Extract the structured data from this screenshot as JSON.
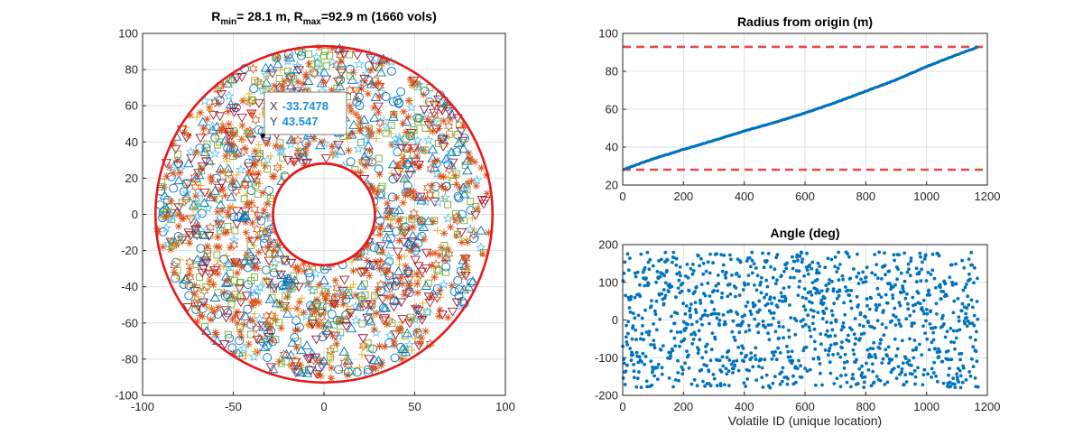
{
  "colors": {
    "red": "#e41a1c",
    "dashed_red": "#e8474c",
    "blue": "#0072bd",
    "orange": "#d95319",
    "yellow": "#edb120",
    "purple": "#7e2f8e",
    "green": "#77ac30",
    "cyan": "#4dbeee",
    "maroon": "#a2142f",
    "grid": "#e1e1e1",
    "axis": "#262626",
    "tip_value": "#1e90d8"
  },
  "chart_data": [
    {
      "id": "scatter",
      "type": "scatter",
      "title_main": "R",
      "title_sub_min": "min",
      "title_mid": "= 28.1 m, R",
      "title_sub_max": "max",
      "title_tail": "=92.9 m (1660 vols)",
      "xlim": [
        -100,
        100
      ],
      "ylim": [
        -100,
        100
      ],
      "xticks": [
        -100,
        -50,
        0,
        50,
        100
      ],
      "yticks": [
        -100,
        -80,
        -60,
        -40,
        -20,
        0,
        20,
        40,
        60,
        80,
        100
      ],
      "grid": true,
      "r_min": 28.1,
      "r_max": 92.9,
      "n_points": 1660,
      "marker_types": [
        "circle",
        "triangle-up",
        "triangle-down",
        "square",
        "plus",
        "asterisk",
        "star",
        "hexagram"
      ],
      "datatip": {
        "x_label": "X",
        "x_value": "-33.7478",
        "y_label": "Y",
        "y_value": "43.547",
        "x": -33.7478,
        "y": 43.547
      }
    },
    {
      "id": "radius",
      "type": "line",
      "title": "Radius from origin (m)",
      "xlim": [
        0,
        1200
      ],
      "ylim": [
        20,
        100
      ],
      "xticks": [
        0,
        200,
        400,
        600,
        800,
        1000,
        1200
      ],
      "yticks": [
        20,
        40,
        60,
        80,
        100
      ],
      "grid": true,
      "x_end": 1170,
      "curve": [
        [
          0,
          28.1
        ],
        [
          100,
          33.8
        ],
        [
          200,
          38.8
        ],
        [
          300,
          43.5
        ],
        [
          400,
          48.5
        ],
        [
          500,
          53.0
        ],
        [
          600,
          58.0
        ],
        [
          700,
          63.5
        ],
        [
          800,
          69.5
        ],
        [
          900,
          75.5
        ],
        [
          1000,
          82.5
        ],
        [
          1100,
          88.7
        ],
        [
          1170,
          92.9
        ]
      ],
      "hlines": [
        28.1,
        92.9
      ]
    },
    {
      "id": "angle",
      "type": "scatter",
      "title": "Angle (deg)",
      "xlabel": "Volatile ID (unique location)",
      "xlim": [
        0,
        1200
      ],
      "ylim": [
        -200,
        200
      ],
      "xticks": [
        0,
        200,
        400,
        600,
        800,
        1000,
        1200
      ],
      "yticks": [
        -200,
        -100,
        0,
        100,
        200
      ],
      "grid": true,
      "n_points": 1170,
      "y_range": [
        -180,
        180
      ]
    }
  ]
}
